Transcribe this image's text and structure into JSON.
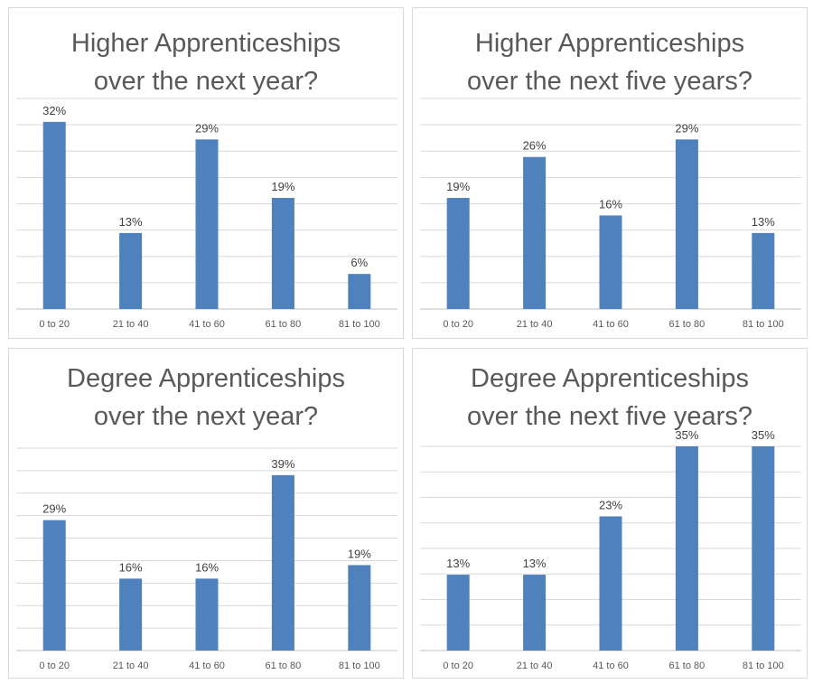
{
  "chart_data": [
    {
      "type": "bar",
      "title_lines": [
        "Higher Apprenticeships",
        "over the next year?"
      ],
      "categories": [
        "0 to 20",
        "21 to 40",
        "41 to 60",
        "61 to 80",
        "81 to 100"
      ],
      "values": [
        32,
        13,
        29,
        19,
        6
      ],
      "data_labels": [
        "32%",
        "13%",
        "29%",
        "19%",
        "6%"
      ],
      "ylim": [
        0,
        36
      ],
      "grid": true,
      "bar_color": "#4f81bd"
    },
    {
      "type": "bar",
      "title_lines": [
        "Higher Apprenticeships",
        "over the next five years?"
      ],
      "categories": [
        "0 to 20",
        "21 to 40",
        "41 to 60",
        "61 to 80",
        "81 to 100"
      ],
      "values": [
        19,
        26,
        16,
        29,
        13
      ],
      "data_labels": [
        "19%",
        "26%",
        "16%",
        "29%",
        "13%"
      ],
      "ylim": [
        0,
        36
      ],
      "grid": true,
      "bar_color": "#4f81bd"
    },
    {
      "type": "bar",
      "title_lines": [
        "Degree Apprenticeships",
        "over the next year?"
      ],
      "categories": [
        "0 to 20",
        "21 to 40",
        "41 to 60",
        "61 to 80",
        "81 to 100"
      ],
      "values": [
        29,
        16,
        16,
        39,
        19
      ],
      "data_labels": [
        "29%",
        "16%",
        "16%",
        "39%",
        "19%"
      ],
      "ylim": [
        0,
        45
      ],
      "grid": true,
      "bar_color": "#4f81bd"
    },
    {
      "type": "bar",
      "title_lines": [
        "Degree Apprenticeships",
        "over the next five years?"
      ],
      "categories": [
        "0 to 20",
        "21 to 40",
        "41 to 60",
        "61 to 80",
        "81 to 100"
      ],
      "values": [
        13,
        13,
        23,
        35,
        35
      ],
      "data_labels": [
        "13%",
        "13%",
        "23%",
        "35%",
        "35%"
      ],
      "ylim": [
        0,
        35
      ],
      "grid": true,
      "bar_color": "#4f81bd"
    }
  ]
}
